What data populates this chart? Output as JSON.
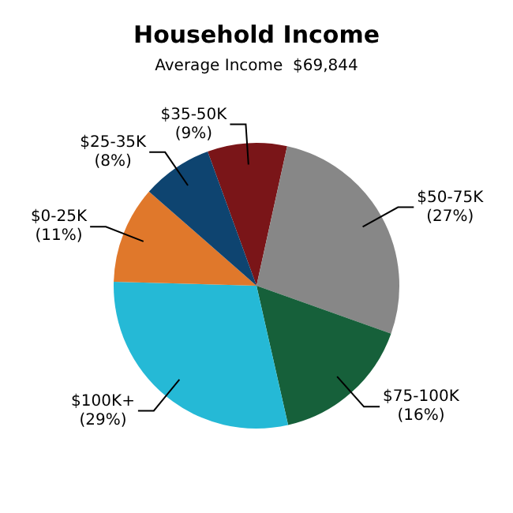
{
  "chart_data": {
    "type": "pie",
    "title": "Household Income",
    "subtitle": "Average Income  $69,844",
    "categories": [
      "$35-50K",
      "$50-75K",
      "$75-100K",
      "$100K+",
      "$0-25K",
      "$25-35K"
    ],
    "values": [
      9,
      27,
      16,
      29,
      11,
      8
    ],
    "value_labels": [
      "(9%)",
      "(27%)",
      "(16%)",
      "(29%)",
      "(11%)",
      "(8%)"
    ],
    "colors": [
      "#7a1518",
      "#878787",
      "#16603a",
      "#25b9d6",
      "#e0782b",
      "#0e4470"
    ],
    "legend": false
  }
}
